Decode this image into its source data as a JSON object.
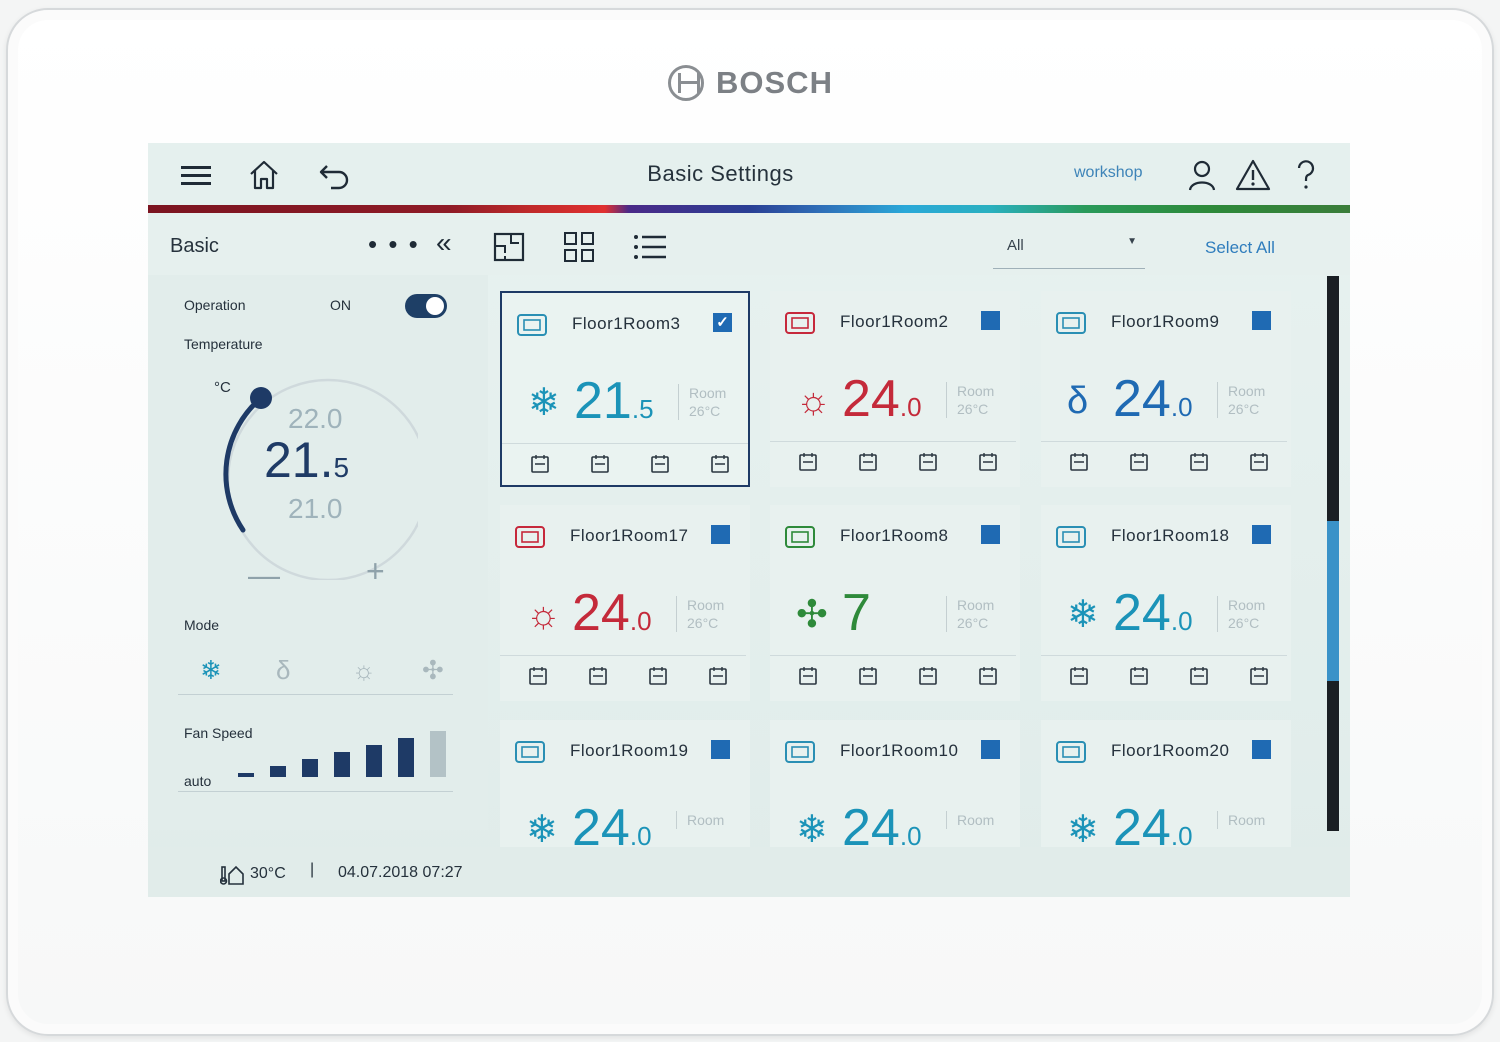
{
  "brand": {
    "name": "BOSCH"
  },
  "header": {
    "title": "Basic Settings",
    "user": "workshop"
  },
  "subheader": {
    "section": "Basic",
    "more": "• • •",
    "collapse": "«",
    "filter": {
      "value": "All",
      "caret": "▼"
    },
    "select_all": "Select All"
  },
  "left_panel": {
    "operation_label": "Operation",
    "operation_value": "ON",
    "temperature_label": "Temperature",
    "unit": "°C",
    "setpoint_int": "21.",
    "setpoint_dec": "5",
    "upper_temp": "22.0",
    "lower_temp": "21.0",
    "minus": "—",
    "plus": "+",
    "mode_label": "Mode",
    "fan_label": "Fan Speed",
    "fan_value": "auto",
    "fan_level_active": 6,
    "fan_level_total": 7
  },
  "cards": [
    {
      "name": "Floor1Room3",
      "temp_int": "21",
      "temp_dec": ".5",
      "room_label": "Room",
      "room_temp": "26°C",
      "mode": "cool",
      "selected": true,
      "check": "✓",
      "color": "#1b93b8",
      "icon_color": "#2a8fb4"
    },
    {
      "name": "Floor1Room2",
      "temp_int": "24",
      "temp_dec": ".0",
      "room_label": "Room",
      "room_temp": "26°C",
      "mode": "heat",
      "selected": false,
      "check": "",
      "color": "#c42a3a",
      "icon_color": "#c6283b"
    },
    {
      "name": "Floor1Room9",
      "temp_int": "24",
      "temp_dec": ".0",
      "room_label": "Room",
      "room_temp": "26°C",
      "mode": "dry",
      "selected": false,
      "check": "",
      "color": "#1f6ab3",
      "icon_color": "#2a8fb4"
    },
    {
      "name": "Floor1Room17",
      "temp_int": "24",
      "temp_dec": ".0",
      "room_label": "Room",
      "room_temp": "26°C",
      "mode": "heat",
      "selected": false,
      "check": "",
      "color": "#c42a3a",
      "icon_color": "#c6283b"
    },
    {
      "name": "Floor1Room8",
      "temp_int": "7",
      "temp_dec": "",
      "room_label": "Room",
      "room_temp": "26°C",
      "mode": "fan",
      "selected": false,
      "check": "",
      "color": "#2e8a3a",
      "icon_color": "#2e8a3a"
    },
    {
      "name": "Floor1Room18",
      "temp_int": "24",
      "temp_dec": ".0",
      "room_label": "Room",
      "room_temp": "26°C",
      "mode": "cool",
      "selected": false,
      "check": "",
      "color": "#1b93b8",
      "icon_color": "#2a8fb4"
    },
    {
      "name": "Floor1Room19",
      "temp_int": "24",
      "temp_dec": ".0",
      "room_label": "Room",
      "room_temp": "",
      "mode": "cool",
      "selected": false,
      "check": "",
      "color": "#1b93b8",
      "icon_color": "#2a8fb4"
    },
    {
      "name": "Floor1Room10",
      "temp_int": "24",
      "temp_dec": ".0",
      "room_label": "Room",
      "room_temp": "",
      "mode": "cool",
      "selected": false,
      "check": "",
      "color": "#1b93b8",
      "icon_color": "#2a8fb4"
    },
    {
      "name": "Floor1Room20",
      "temp_int": "24",
      "temp_dec": ".0",
      "room_label": "Room",
      "room_temp": "",
      "mode": "cool",
      "selected": false,
      "check": "",
      "color": "#1b93b8",
      "icon_color": "#2a8fb4"
    }
  ],
  "status": {
    "outdoor_temp": "30°C",
    "separator": "|",
    "datetime": "04.07.2018 07:27"
  },
  "glyphs": {
    "cool": "❄",
    "heat": "☼",
    "dry": "δ",
    "fan": "✣"
  }
}
